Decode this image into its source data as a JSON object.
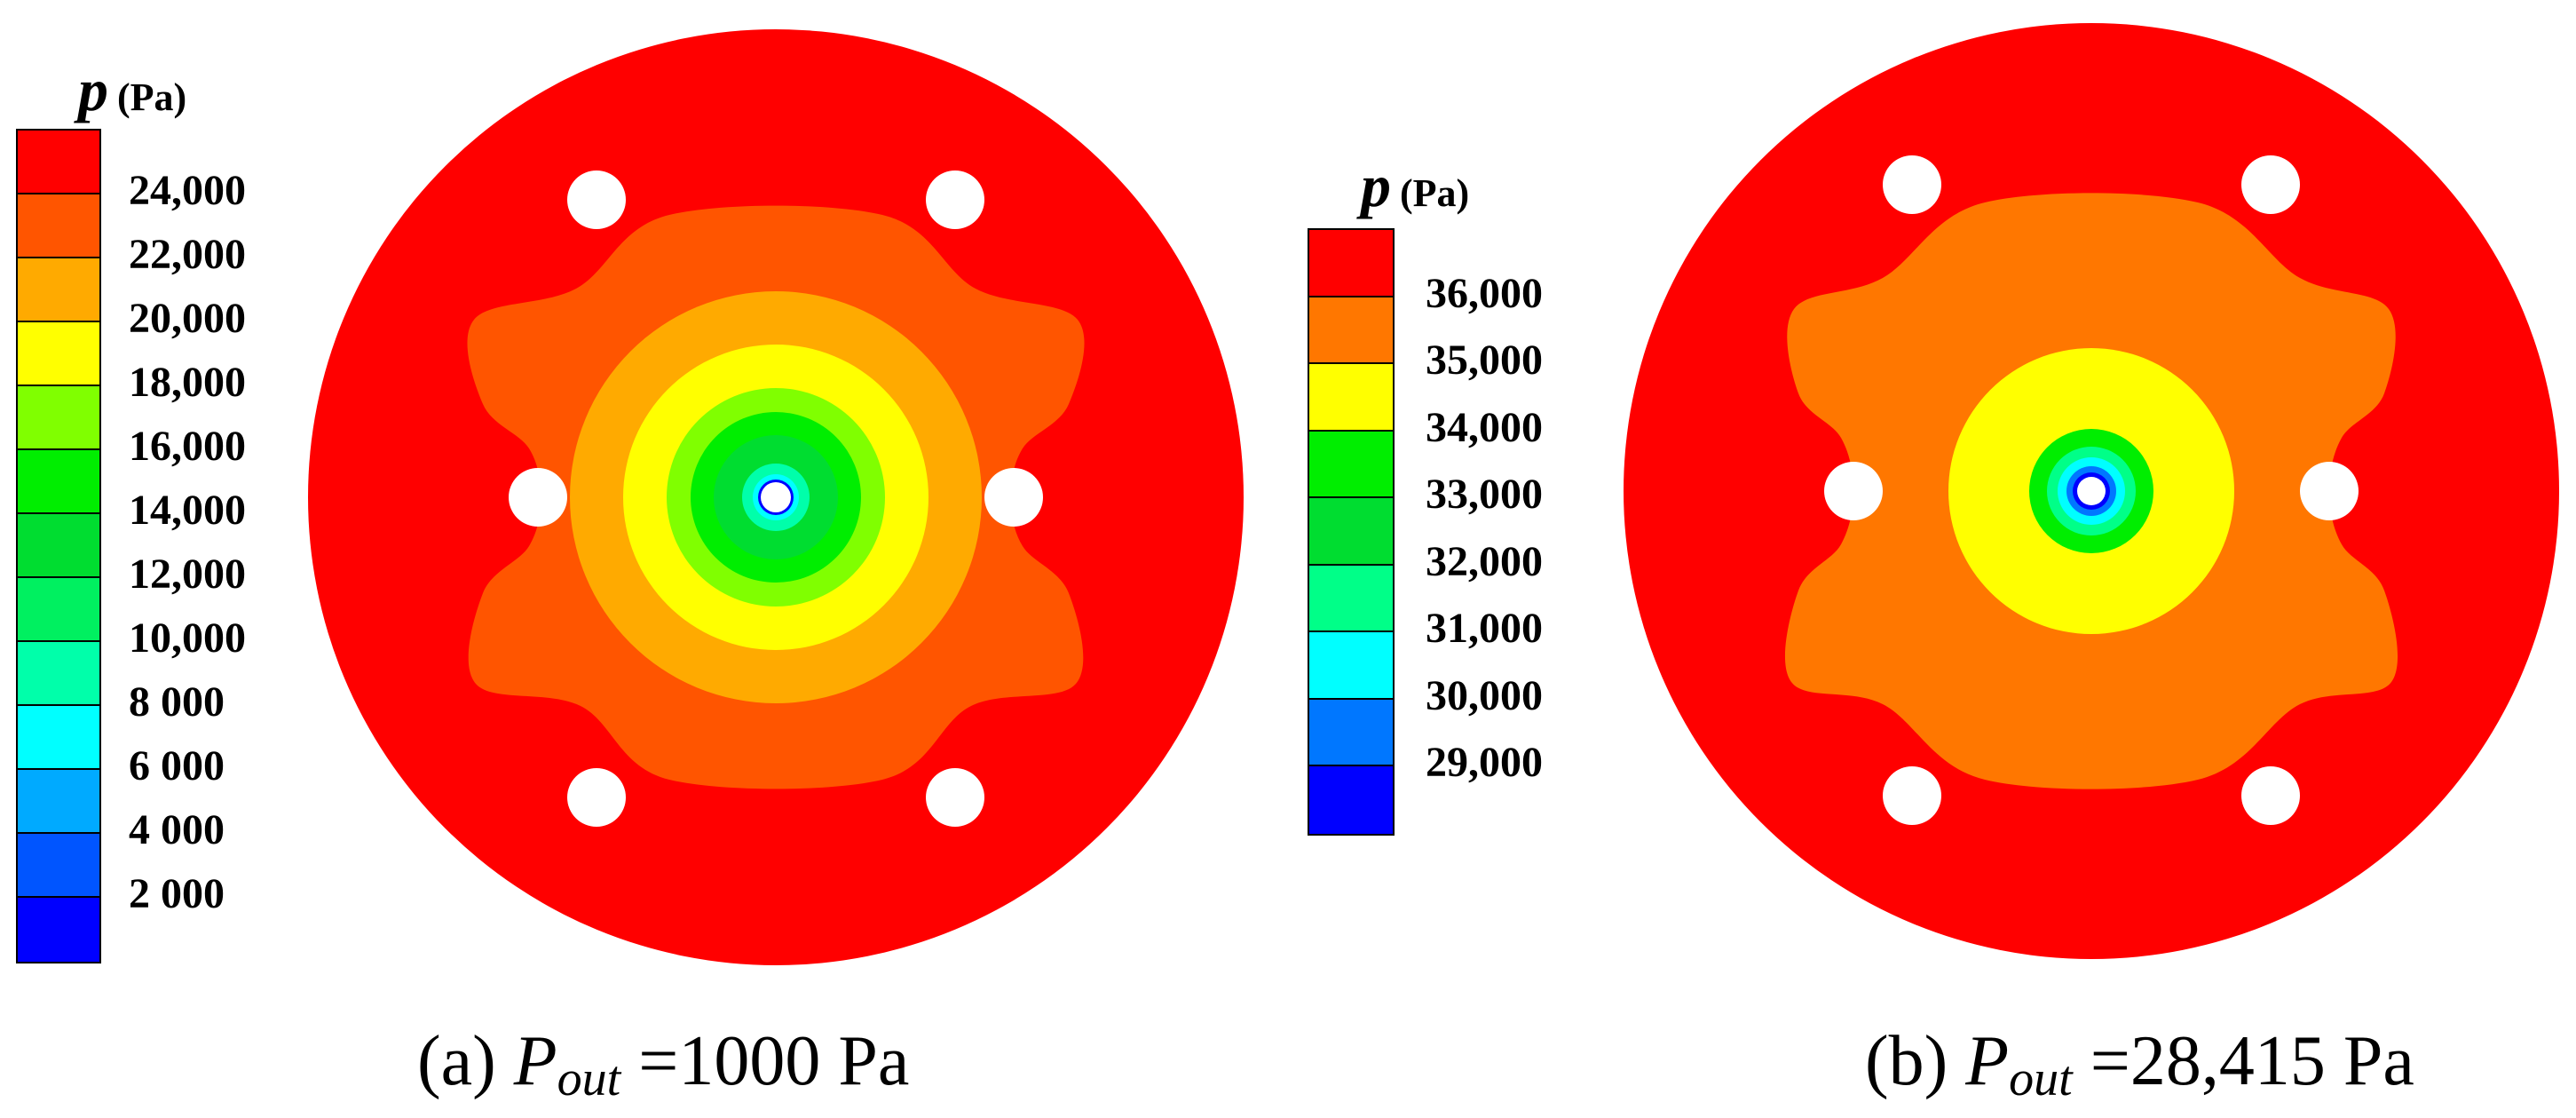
{
  "chart_data": [
    {
      "type": "heatmap",
      "panel": "a",
      "caption": {
        "prefix": "(a) ",
        "symbol": "P",
        "subscript": "out",
        "suffix": " =1000 Pa"
      },
      "colorbar": {
        "title_symbol": "p",
        "unit": "(Pa)",
        "tick_labels": [
          "24,000",
          "22,000",
          "20,000",
          "18,000",
          "16,000",
          "14,000",
          "12,000",
          "10,000",
          "8 000",
          "6 000",
          "4 000",
          "2 000"
        ],
        "tick_values": [
          24000,
          22000,
          20000,
          18000,
          16000,
          14000,
          12000,
          10000,
          8000,
          6000,
          4000,
          2000
        ],
        "colors": [
          "#ff0000",
          "#ff5500",
          "#ffaa00",
          "#ffff00",
          "#80ff00",
          "#00ee00",
          "#00dd30",
          "#00f060",
          "#00ffaa",
          "#00ffff",
          "#00aaff",
          "#0055ff",
          "#0000ff"
        ]
      },
      "field": {
        "outer_value": 24000,
        "contour_rings": [
          {
            "color": "#ff5500",
            "shape": "lobed"
          },
          {
            "color": "#ffaa00",
            "shape": "circle"
          },
          {
            "color": "#ffff00",
            "shape": "circle"
          },
          {
            "color": "#80ff00",
            "shape": "circle"
          },
          {
            "color": "#00ee00",
            "shape": "circle"
          },
          {
            "color": "#00dd30",
            "shape": "circle"
          },
          {
            "color": "#00ffaa",
            "shape": "circle"
          },
          {
            "color": "#00ffff",
            "shape": "circle"
          },
          {
            "color": "#0000ff",
            "shape": "circle"
          }
        ],
        "holes": 6
      }
    },
    {
      "type": "heatmap",
      "panel": "b",
      "caption": {
        "prefix": "(b) ",
        "symbol": "P",
        "subscript": "out",
        "suffix": " =28,415 Pa"
      },
      "colorbar": {
        "title_symbol": "p",
        "unit": "(Pa)",
        "tick_labels": [
          "36,000",
          "35,000",
          "34,000",
          "33,000",
          "32,000",
          "31,000",
          "30,000",
          "29,000"
        ],
        "tick_values": [
          36000,
          35000,
          34000,
          33000,
          32000,
          31000,
          30000,
          29000
        ],
        "colors": [
          "#ff0000",
          "#ff7700",
          "#ffff00",
          "#00ee00",
          "#00dd30",
          "#00ff88",
          "#00ffff",
          "#0077ff",
          "#0000ff"
        ]
      },
      "field": {
        "outer_value": 36000,
        "contour_rings": [
          {
            "color": "#ff7700",
            "shape": "lobed"
          },
          {
            "color": "#ffff00",
            "shape": "circle"
          },
          {
            "color": "#00ee00",
            "shape": "circle"
          },
          {
            "color": "#00ff88",
            "shape": "circle"
          },
          {
            "color": "#00ffff",
            "shape": "circle"
          },
          {
            "color": "#0077ff",
            "shape": "circle"
          },
          {
            "color": "#0000ff",
            "shape": "circle"
          }
        ],
        "holes": 6
      }
    }
  ]
}
